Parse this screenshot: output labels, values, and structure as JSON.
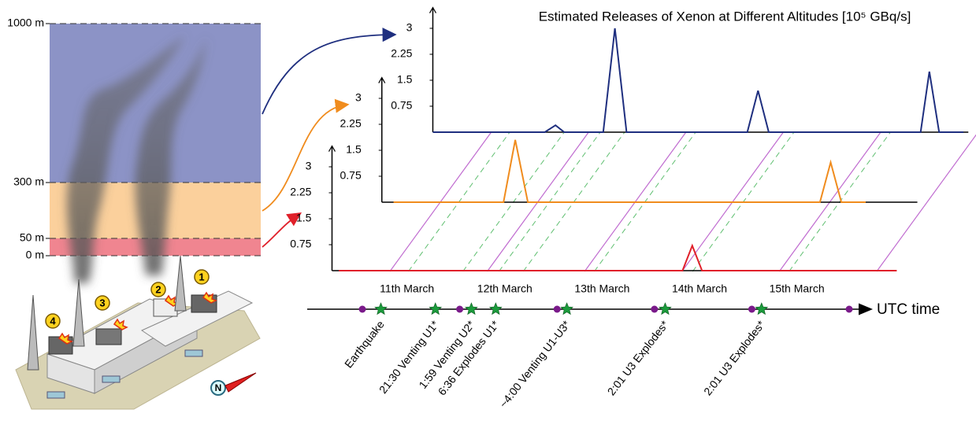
{
  "chart_data": [
    {
      "type": "line",
      "title": "Estimated Releases of Xenon at Different Altitudes [10⁵ GBq/s]",
      "color": "#1f2f7f",
      "x": [
        -0.6,
        0.55,
        0.66,
        0.75,
        1.15,
        1.27,
        1.39,
        2.63,
        2.74,
        2.85,
        4.41,
        4.5,
        4.6,
        4.85
      ],
      "values": [
        0,
        0,
        0.2,
        0,
        0,
        3,
        0,
        0,
        1.2,
        0,
        0,
        1.75,
        0,
        0
      ],
      "xlim": [
        -0.6,
        4.9
      ],
      "ylim": [
        0,
        3.6
      ],
      "yticks": [
        0.75,
        1.5,
        2.25,
        3
      ]
    },
    {
      "type": "line",
      "color": "#f08c1e",
      "x": [
        -0.48,
        0.65,
        0.77,
        0.9,
        3.9,
        4.01,
        4.12,
        4.37
      ],
      "values": [
        0,
        0,
        1.8,
        0,
        0,
        1.15,
        0,
        0
      ],
      "xlim": [
        -0.6,
        4.9
      ],
      "ylim": [
        0,
        3.6
      ],
      "yticks": [
        0.75,
        1.5,
        2.25,
        3
      ]
    },
    {
      "type": "line",
      "color": "#e0202a",
      "x": [
        -0.53,
        3.0,
        3.1,
        3.2,
        5.2
      ],
      "values": [
        0,
        0,
        0.72,
        0,
        0
      ],
      "xlim": [
        -0.6,
        4.9
      ],
      "ylim": [
        0,
        3.6
      ],
      "yticks": [
        0.75,
        1.5,
        2.25,
        3
      ]
    }
  ],
  "altitudes": [
    "1000 m",
    "300 m",
    "50 m",
    "0 m"
  ],
  "timeline": {
    "label": "UTC time",
    "day_edges": [
      0,
      1,
      2,
      3,
      4,
      5
    ],
    "days": [
      "11th March",
      "12th March",
      "13th March",
      "14th March",
      "15th March"
    ],
    "events": [
      {
        "label": "Earthquake",
        "t": 0.19
      },
      {
        "label": "21:30 Venting U1*",
        "t": 0.75
      },
      {
        "label": "1:59 Venting U2*",
        "t": 1.12
      },
      {
        "label": "6:36 Explodes U1*",
        "t": 1.37
      },
      {
        "label": "~4:00 Venting U1-U3*",
        "t": 2.1
      },
      {
        "label": "2:01 U3 Explodes*",
        "t": 3.11
      },
      {
        "label": "2:01 U3 Explodes*",
        "t": 4.1
      }
    ]
  },
  "plant": {
    "units": [
      "1",
      "2",
      "3",
      "4"
    ],
    "north": "N"
  }
}
